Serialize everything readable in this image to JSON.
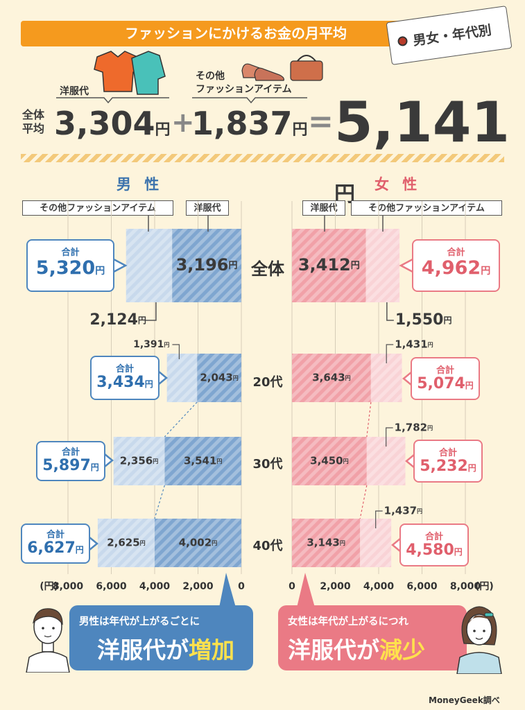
{
  "header": {
    "title": "ファッションにかけるお金の月平均",
    "tag": "男女・年代別",
    "row_label_line1": "全体",
    "row_label_line2": "平均",
    "clothing_label": "洋服代",
    "clothing_amount": "3,304",
    "other_label_line1": "その他",
    "other_label_line2": "ファッションアイテム",
    "other_amount": "1,837",
    "total_amount": "5,141",
    "unit": "円",
    "plus": "+",
    "equals": "="
  },
  "male": {
    "title": "男 性",
    "legend_other": "その他ファッションアイテム",
    "legend_clothing": "洋服代",
    "total_label": "合計",
    "axis_unit": "(円)",
    "message_line1": "男性は年代が上がるごとに",
    "message_line2a": "洋服代が",
    "message_line2b": "増加",
    "color_clothing": "#7fa6d0",
    "color_other": "#c8d9ec",
    "color_text": "#2f6fae"
  },
  "female": {
    "title": "女 性",
    "legend_clothing": "洋服代",
    "legend_other": "その他ファッションアイテム",
    "total_label": "合計",
    "axis_unit": "(円)",
    "message_line1": "女性は年代が上がるにつれ",
    "message_line2a": "洋服代が",
    "message_line2b": "減少",
    "color_clothing": "#f1a1a8",
    "color_other": "#f9d3d6",
    "color_text": "#e05f6c"
  },
  "categories": [
    "全体",
    "20代",
    "30代",
    "40代"
  ],
  "credit": "MoneyGeek調べ",
  "chart_data": [
    {
      "type": "bar",
      "title": "男 性",
      "categories": [
        "全体",
        "20代",
        "30代",
        "40代"
      ],
      "series": [
        {
          "name": "洋服代",
          "values": [
            3196,
            2043,
            3541,
            4002
          ],
          "labels": [
            "3,196",
            "2,043",
            "3,541",
            "4,002"
          ]
        },
        {
          "name": "その他ファッションアイテム",
          "values": [
            2124,
            1391,
            2356,
            2625
          ],
          "labels": [
            "2,124",
            "1,391",
            "2,356",
            "2,625"
          ]
        }
      ],
      "totals": [
        5320,
        3434,
        5897,
        6627
      ],
      "total_labels": [
        "5,320",
        "3,434",
        "5,897",
        "6,627"
      ],
      "xlim": [
        0,
        8000
      ],
      "ticks": [
        "0",
        "2,000",
        "4,000",
        "6,000",
        "8,000"
      ],
      "tick_values": [
        0,
        2000,
        4000,
        6000,
        8000
      ],
      "unit": "円",
      "direction": "right-to-left",
      "stacked": true
    },
    {
      "type": "bar",
      "title": "女 性",
      "categories": [
        "全体",
        "20代",
        "30代",
        "40代"
      ],
      "series": [
        {
          "name": "洋服代",
          "values": [
            3412,
            3643,
            3450,
            3143
          ],
          "labels": [
            "3,412",
            "3,643",
            "3,450",
            "3,143"
          ]
        },
        {
          "name": "その他ファッションアイテム",
          "values": [
            1550,
            1431,
            1782,
            1437
          ],
          "labels": [
            "1,550",
            "1,431",
            "1,782",
            "1,437"
          ]
        }
      ],
      "totals": [
        4962,
        5074,
        5232,
        4580
      ],
      "total_labels": [
        "4,962",
        "5,074",
        "5,232",
        "4,580"
      ],
      "xlim": [
        0,
        8000
      ],
      "ticks": [
        "0",
        "2,000",
        "4,000",
        "6,000",
        "8,000"
      ],
      "tick_values": [
        0,
        2000,
        4000,
        6000,
        8000
      ],
      "unit": "円",
      "direction": "left-to-right",
      "stacked": true
    }
  ]
}
